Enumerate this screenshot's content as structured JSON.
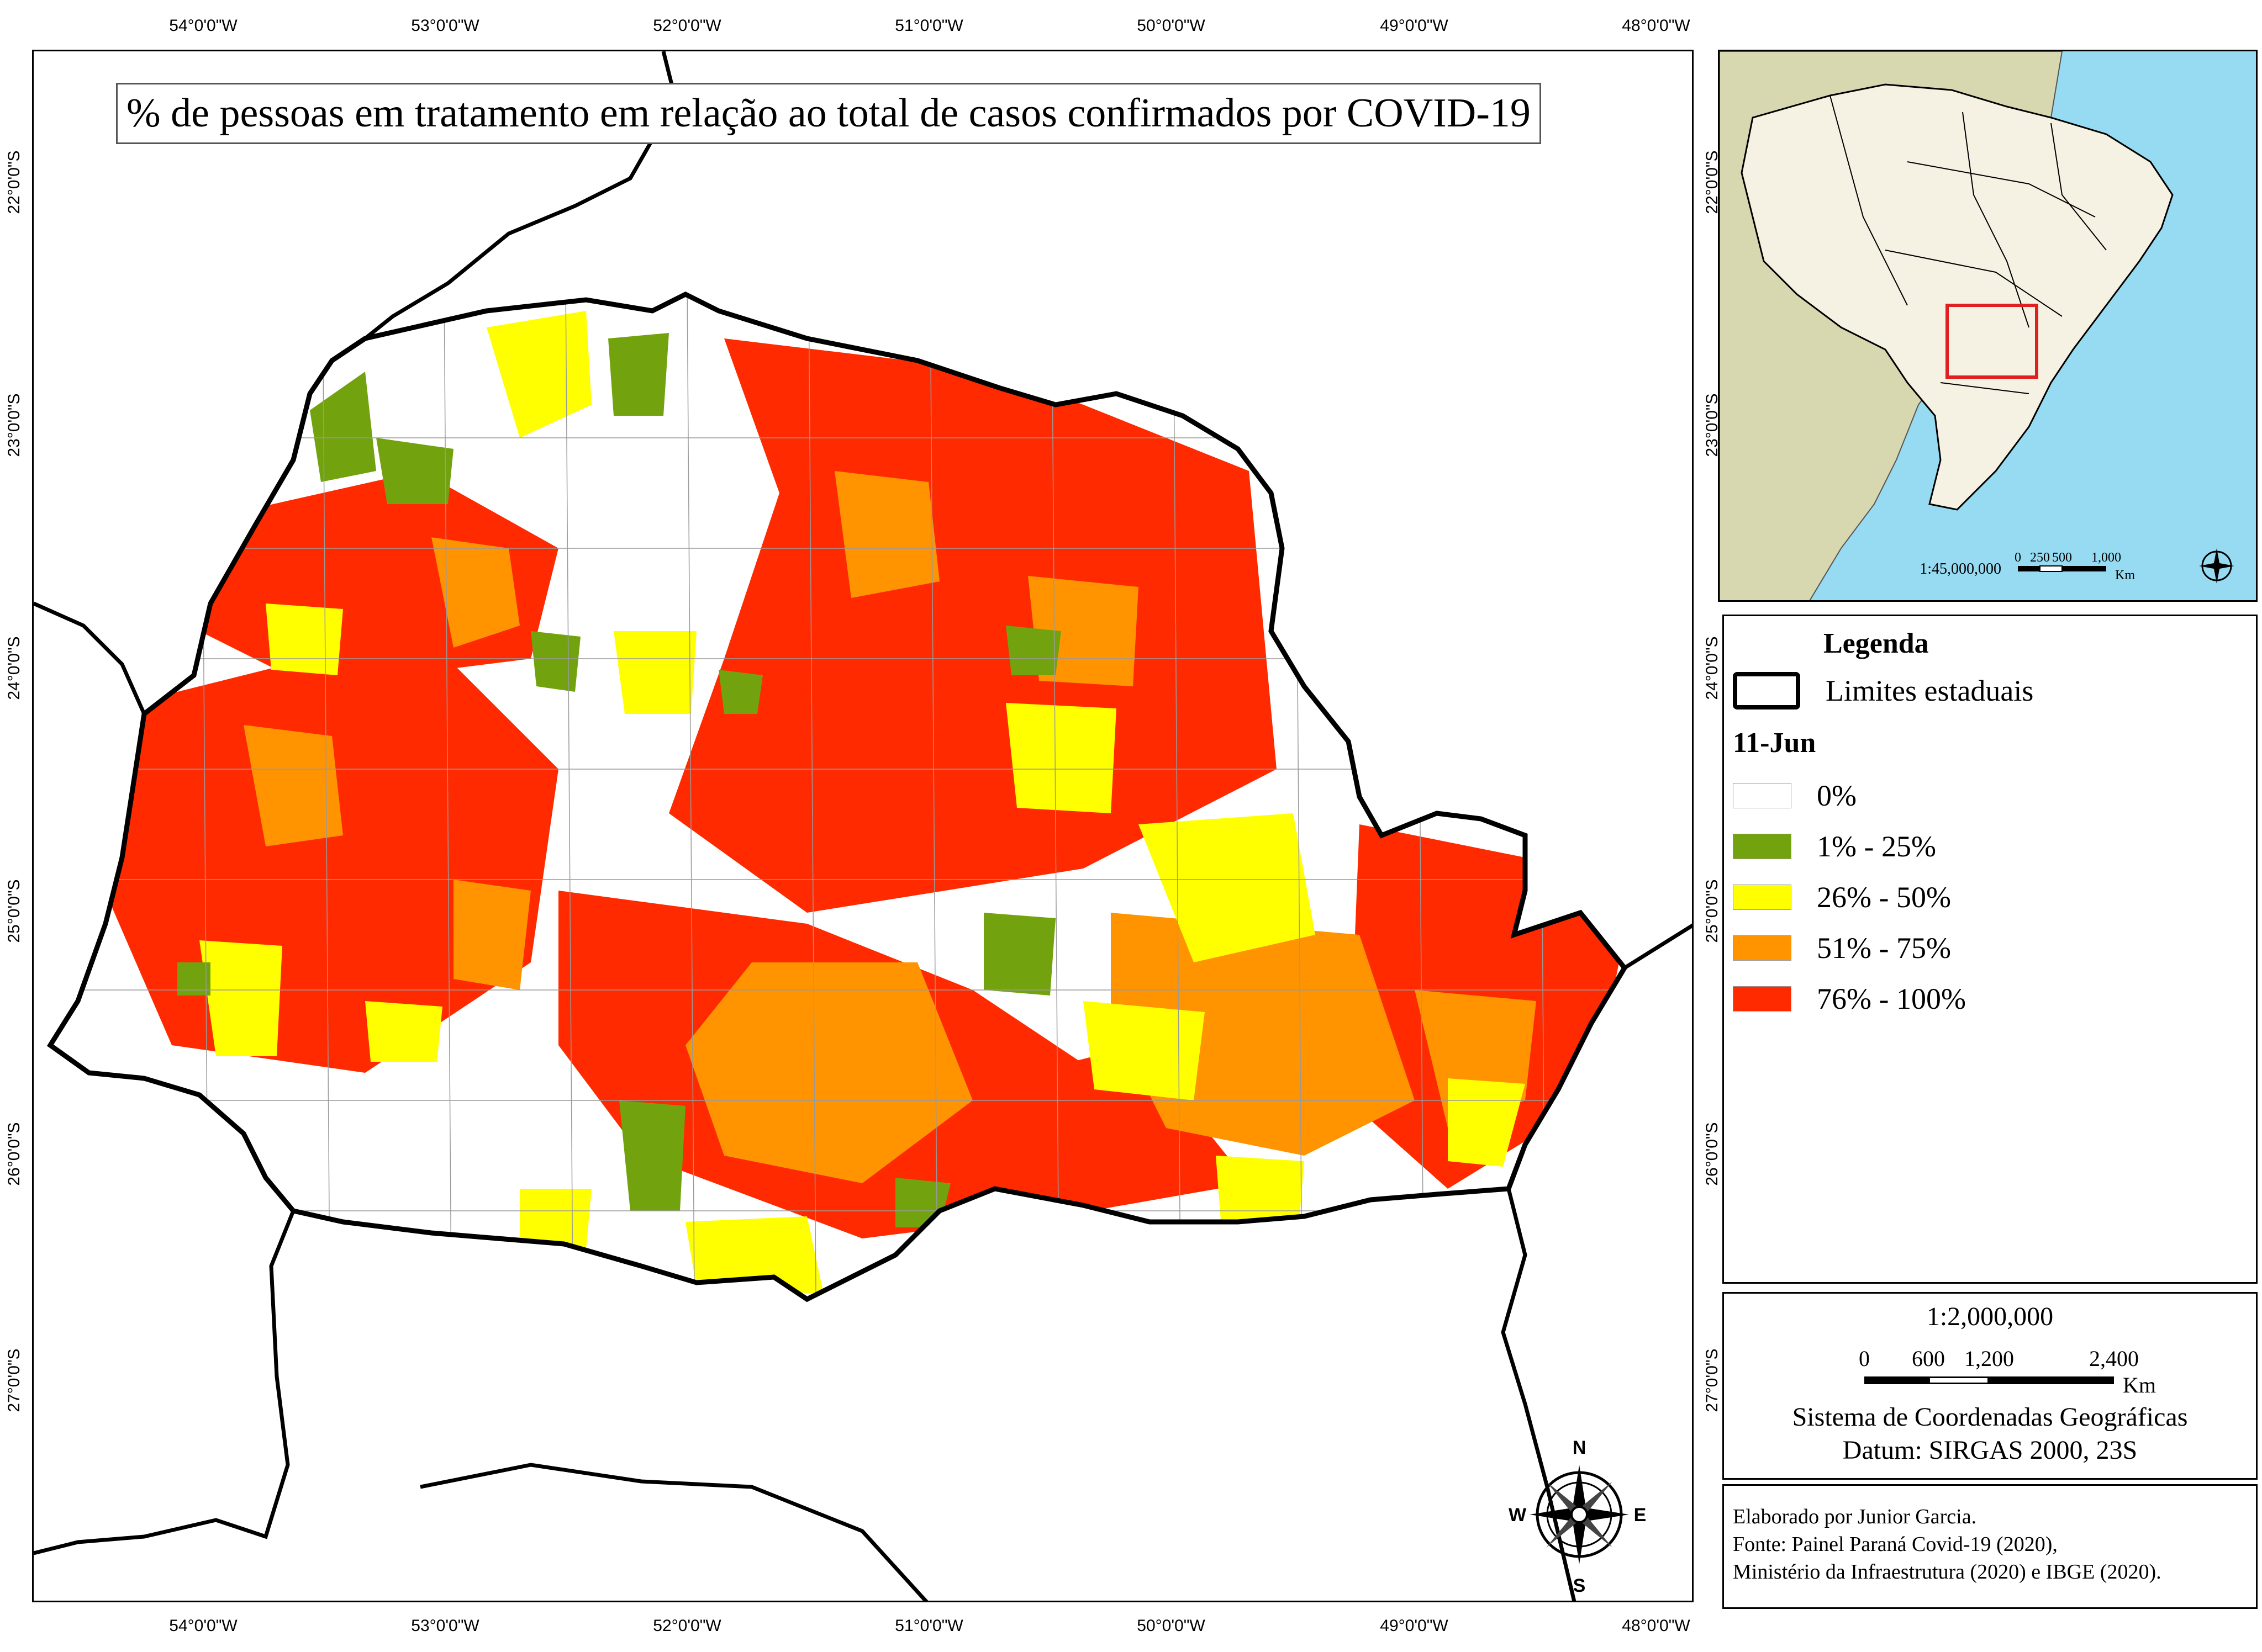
{
  "map": {
    "title": "% de pessoas em tratamento em relação ao total de casos confirmados por COVID-19",
    "graticule": {
      "longitude_labels": [
        "54°0'0\"W",
        "53°0'0\"W",
        "52°0'0\"W",
        "51°0'0\"W",
        "50°0'0\"W",
        "49°0'0\"W",
        "48°0'0\"W"
      ],
      "latitude_labels": [
        "22°0'0\"S",
        "23°0'0\"S",
        "24°0'0\"S",
        "25°0'0\"S",
        "26°0'0\"S",
        "27°0'0\"S"
      ]
    },
    "colors": {
      "class_0": "#ffffff",
      "class_1_25": "#72a20e",
      "class_26_50": "#ffff00",
      "class_51_75": "#ff9400",
      "class_76_100": "#ff2a00",
      "boundary": "#000000",
      "ocean": "#97dbf2",
      "land": "#d7d7b0",
      "brazil": "#f5f2e3",
      "inset_box": "#e02020"
    },
    "north_arrow": {
      "n": "N",
      "s": "S",
      "e": "E",
      "w": "W"
    }
  },
  "inset": {
    "scale_text": "1:45,000,000",
    "scale_ticks": [
      "0",
      "250",
      "500",
      "1,000"
    ],
    "scale_unit": "Km"
  },
  "legend": {
    "title": "Legenda",
    "boundary_label": "Limites estaduais",
    "date_label": "11-Jun",
    "classes": [
      {
        "label": "0%",
        "color": "#ffffff"
      },
      {
        "label": "1% - 25%",
        "color": "#72a20e"
      },
      {
        "label": "26% - 50%",
        "color": "#ffff00"
      },
      {
        "label": "51% - 75%",
        "color": "#ff9400"
      },
      {
        "label": "76% - 100%",
        "color": "#ff2a00"
      }
    ]
  },
  "scale_box": {
    "ratio": "1:2,000,000",
    "ticks": [
      "0",
      "600",
      "1,200",
      "2,400"
    ],
    "unit": "Km",
    "crs_line_1": "Sistema de Coordenadas Geográficas",
    "crs_line_2": "Datum: SIRGAS 2000, 23S"
  },
  "credits": {
    "line_1": "Elaborado por Junior Garcia.",
    "line_2": "Fonte: Painel Paraná Covid-19 (2020),",
    "line_3": "Ministério da Infraestrutura (2020) e IBGE (2020)."
  }
}
